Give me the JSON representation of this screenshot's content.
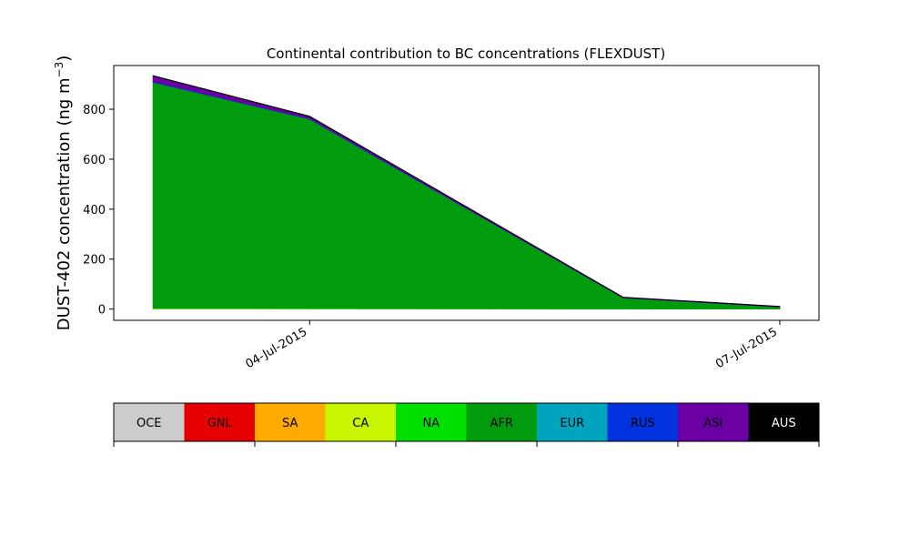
{
  "chart_data": {
    "type": "area",
    "stacked": true,
    "title": "Continental contribution to BC concentrations (FLEXDUST)",
    "xlabel": "",
    "ylabel": "DUST-402 concentration (ng m",
    "ylabel_unit_sup": "−3",
    "ylabel_close": ")",
    "x": [
      "2015-07-03T00:00",
      "2015-07-04T00:00",
      "2015-07-06T00:00",
      "2015-07-07T00:00"
    ],
    "xlim": [
      "2015-07-02T18:00",
      "2015-07-07T06:00"
    ],
    "ylim": [
      -45,
      975
    ],
    "xticks": [
      {
        "value": "2015-07-04T00:00",
        "label": "04-Jul-2015"
      },
      {
        "value": "2015-07-07T00:00",
        "label": "07-Jul-2015"
      }
    ],
    "yticks": [
      {
        "value": 0,
        "label": "0"
      },
      {
        "value": 200,
        "label": "200"
      },
      {
        "value": 400,
        "label": "400"
      },
      {
        "value": 600,
        "label": "600"
      },
      {
        "value": 800,
        "label": "800"
      }
    ],
    "grid": false,
    "series": [
      {
        "name": "OCE",
        "color": "#cccccc",
        "values": [
          0,
          0,
          0,
          0
        ]
      },
      {
        "name": "GNL",
        "color": "#e60000",
        "values": [
          0,
          0,
          0,
          0
        ]
      },
      {
        "name": "SA",
        "color": "#ffaa00",
        "values": [
          0,
          0,
          0,
          0
        ]
      },
      {
        "name": "CA",
        "color": "#c8f500",
        "values": [
          2,
          1.5,
          0.5,
          0.3
        ]
      },
      {
        "name": "NA",
        "color": "#00e000",
        "values": [
          1,
          1,
          0.5,
          0.2
        ]
      },
      {
        "name": "AFR",
        "color": "#009c0d",
        "values": [
          905,
          758,
          44,
          8
        ]
      },
      {
        "name": "EUR",
        "color": "#00a4be",
        "values": [
          0,
          0,
          0,
          0
        ]
      },
      {
        "name": "RUS",
        "color": "#0033dd",
        "values": [
          3,
          2,
          0.3,
          0.2
        ]
      },
      {
        "name": "ASI",
        "color": "#6a00a3",
        "values": [
          22,
          8,
          1.5,
          1.3
        ]
      },
      {
        "name": "AUS",
        "color": "#000000",
        "values": [
          2,
          2,
          1,
          1
        ]
      }
    ],
    "legend": {
      "placement": "bottom",
      "label_colors": [
        "#000000",
        "#000000",
        "#000000",
        "#000000",
        "#000000",
        "#000000",
        "#000000",
        "#000000",
        "#000000",
        "#ffffff"
      ]
    }
  }
}
